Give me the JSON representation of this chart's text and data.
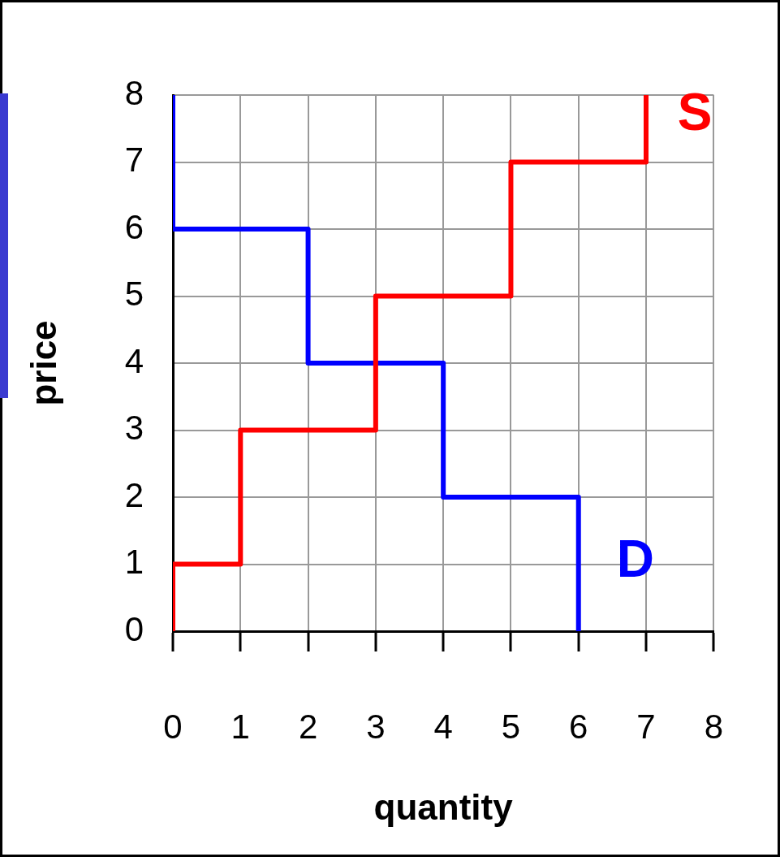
{
  "chart_data": {
    "type": "line",
    "xlabel": "quantity",
    "ylabel": "price",
    "xlim": [
      0,
      8
    ],
    "ylim": [
      0,
      8
    ],
    "xticks": [
      0,
      1,
      2,
      3,
      4,
      5,
      6,
      7,
      8
    ],
    "yticks": [
      0,
      1,
      2,
      3,
      4,
      5,
      6,
      7,
      8
    ],
    "grid": true,
    "marker": "none",
    "series": [
      {
        "name": "S",
        "color": "#ff0000",
        "x": [
          0,
          0,
          1,
          1,
          3,
          3,
          5,
          5,
          7,
          7
        ],
        "values": [
          0,
          1,
          1,
          3,
          3,
          5,
          5,
          7,
          7,
          8
        ]
      },
      {
        "name": "D",
        "color": "#0000ff",
        "x": [
          0,
          0,
          2,
          2,
          4,
          4,
          6,
          6
        ],
        "values": [
          8,
          6,
          6,
          4,
          4,
          2,
          2,
          0
        ]
      }
    ]
  }
}
